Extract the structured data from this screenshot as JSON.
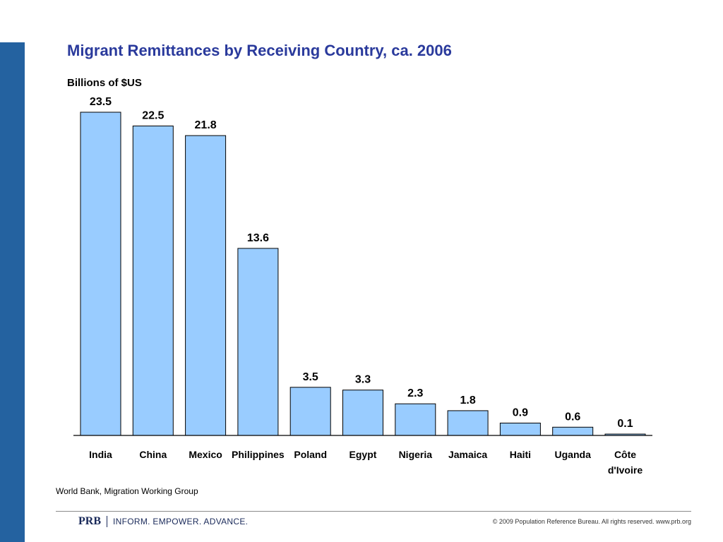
{
  "chart_data": {
    "type": "bar",
    "title": "Migrant Remittances by Receiving Country, ca. 2006",
    "ylabel": "Billions of $US",
    "xlabel": "",
    "categories": [
      "India",
      "China",
      "Mexico",
      "Philippines",
      "Poland",
      "Egypt",
      "Nigeria",
      "Jamaica",
      "Haiti",
      "Uganda",
      "Côte d'Ivoire"
    ],
    "category_lines": [
      [
        "India"
      ],
      [
        "China"
      ],
      [
        "Mexico"
      ],
      [
        "Philippines"
      ],
      [
        "Poland"
      ],
      [
        "Egypt"
      ],
      [
        "Nigeria"
      ],
      [
        "Jamaica"
      ],
      [
        "Haiti"
      ],
      [
        "Uganda"
      ],
      [
        "Côte",
        "d'Ivoire"
      ]
    ],
    "values": [
      23.5,
      22.5,
      21.8,
      13.6,
      3.5,
      3.3,
      2.3,
      1.8,
      0.9,
      0.6,
      0.1
    ],
    "data_labels": [
      "23.5",
      "22.5",
      "21.8",
      "13.6",
      "3.5",
      "3.3",
      "2.3",
      "1.8",
      "0.9",
      "0.6",
      "0.1"
    ],
    "ylim": [
      0,
      23.5
    ],
    "grid": false,
    "legend": "none",
    "bar_color": "#99ccff",
    "bar_outline_color": "#000000"
  },
  "source_note": "World Bank, Migration Working Group",
  "footer": {
    "logo": "PRB",
    "tagline": "INFORM. EMPOWER. ADVANCE.",
    "copyright": "© 2009 Population Reference Bureau. All rights reserved. www.prb.org"
  },
  "colors": {
    "side_bar": "#2462a0",
    "title": "#2a3a9c"
  }
}
